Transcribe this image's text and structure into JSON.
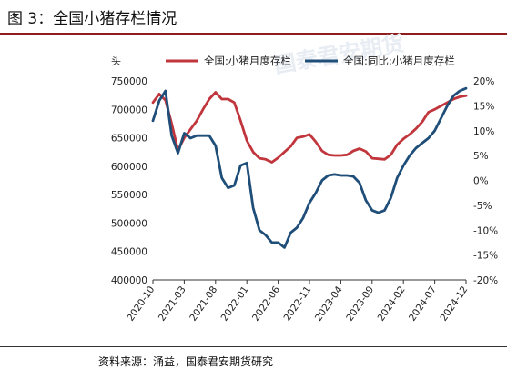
{
  "figure": {
    "title": "图 3：全国小猪存栏情况",
    "source": "资料来源：涌益，国泰君安期货研究",
    "watermark": "国泰君安期货"
  },
  "colors": {
    "series_national_stock": "#c0363c",
    "series_yoy": "#1f4e79",
    "rule_accent": "#8f1d1d",
    "axis": "#333333"
  },
  "chart_data": {
    "type": "line",
    "y_left_unit": "头",
    "ylim_left": [
      400000,
      750000
    ],
    "ylim_right": [
      -20,
      20
    ],
    "y_left_ticks": [
      "750000",
      "700000",
      "650000",
      "600000",
      "550000",
      "500000",
      "450000",
      "400000"
    ],
    "y_right_ticks": [
      "20%",
      "15%",
      "10%",
      "5%",
      "0%",
      "-5%",
      "-10%",
      "-15%",
      "-20%"
    ],
    "x_ticks": [
      "2020-10",
      "2021-03",
      "2021-08",
      "2022-01",
      "2022-06",
      "2022-11",
      "2023-04",
      "2023-09",
      "2024-02",
      "2024-07",
      "2024-12"
    ],
    "x_range": [
      "2020-10",
      "2024-12"
    ],
    "legend_position": "top",
    "series": [
      {
        "name": "全国:小猪月度存栏",
        "axis": "left",
        "points": [
          [
            "2020-10",
            712000
          ],
          [
            "2020-11",
            727000
          ],
          [
            "2020-12",
            716000
          ],
          [
            "2021-01",
            675000
          ],
          [
            "2021-02",
            628000
          ],
          [
            "2021-03",
            650000
          ],
          [
            "2021-04",
            665000
          ],
          [
            "2021-05",
            680000
          ],
          [
            "2021-06",
            700000
          ],
          [
            "2021-07",
            718000
          ],
          [
            "2021-08",
            730000
          ],
          [
            "2021-09",
            718000
          ],
          [
            "2021-10",
            718000
          ],
          [
            "2021-11",
            712000
          ],
          [
            "2021-12",
            680000
          ],
          [
            "2022-01",
            645000
          ],
          [
            "2022-02",
            625000
          ],
          [
            "2022-03",
            614000
          ],
          [
            "2022-04",
            612000
          ],
          [
            "2022-05",
            607000
          ],
          [
            "2022-06",
            615000
          ],
          [
            "2022-07",
            625000
          ],
          [
            "2022-08",
            635000
          ],
          [
            "2022-09",
            650000
          ],
          [
            "2022-10",
            652000
          ],
          [
            "2022-11",
            656000
          ],
          [
            "2022-12",
            643000
          ],
          [
            "2023-01",
            627000
          ],
          [
            "2023-02",
            620000
          ],
          [
            "2023-03",
            619000
          ],
          [
            "2023-04",
            619000
          ],
          [
            "2023-05",
            620000
          ],
          [
            "2023-06",
            627000
          ],
          [
            "2023-07",
            631000
          ],
          [
            "2023-08",
            626000
          ],
          [
            "2023-09",
            614000
          ],
          [
            "2023-10",
            613000
          ],
          [
            "2023-11",
            612000
          ],
          [
            "2023-12",
            620000
          ],
          [
            "2024-01",
            638000
          ],
          [
            "2024-02",
            648000
          ],
          [
            "2024-03",
            656000
          ],
          [
            "2024-04",
            666000
          ],
          [
            "2024-05",
            678000
          ],
          [
            "2024-06",
            695000
          ],
          [
            "2024-07",
            700000
          ],
          [
            "2024-08",
            706000
          ],
          [
            "2024-09",
            712000
          ],
          [
            "2024-10",
            718000
          ],
          [
            "2024-11",
            722000
          ],
          [
            "2024-12",
            724000
          ]
        ]
      },
      {
        "name": "全国:同比:小猪月度存栏",
        "axis": "right",
        "points": [
          [
            "2020-10",
            12.0
          ],
          [
            "2020-11",
            16.0
          ],
          [
            "2020-12",
            18.0
          ],
          [
            "2021-01",
            9.0
          ],
          [
            "2021-02",
            5.5
          ],
          [
            "2021-03",
            9.5
          ],
          [
            "2021-04",
            8.5
          ],
          [
            "2021-05",
            9.0
          ],
          [
            "2021-06",
            9.0
          ],
          [
            "2021-07",
            9.0
          ],
          [
            "2021-08",
            7.0
          ],
          [
            "2021-09",
            0.5
          ],
          [
            "2021-10",
            -1.5
          ],
          [
            "2021-11",
            -1.0
          ],
          [
            "2021-12",
            3.0
          ],
          [
            "2022-01",
            3.5
          ],
          [
            "2022-02",
            -5.5
          ],
          [
            "2022-03",
            -10.0
          ],
          [
            "2022-04",
            -11.0
          ],
          [
            "2022-05",
            -12.5
          ],
          [
            "2022-06",
            -12.5
          ],
          [
            "2022-07",
            -13.5
          ],
          [
            "2022-08",
            -10.5
          ],
          [
            "2022-09",
            -9.5
          ],
          [
            "2022-10",
            -7.5
          ],
          [
            "2022-11",
            -4.5
          ],
          [
            "2022-12",
            -2.5
          ],
          [
            "2023-01",
            0.0
          ],
          [
            "2023-02",
            1.0
          ],
          [
            "2023-03",
            1.2
          ],
          [
            "2023-04",
            1.0
          ],
          [
            "2023-05",
            1.0
          ],
          [
            "2023-06",
            0.8
          ],
          [
            "2023-07",
            -0.5
          ],
          [
            "2023-08",
            -4.0
          ],
          [
            "2023-09",
            -6.0
          ],
          [
            "2023-10",
            -6.5
          ],
          [
            "2023-11",
            -6.0
          ],
          [
            "2023-12",
            -3.5
          ],
          [
            "2024-01",
            0.5
          ],
          [
            "2024-02",
            3.0
          ],
          [
            "2024-03",
            5.0
          ],
          [
            "2024-04",
            6.5
          ],
          [
            "2024-05",
            7.5
          ],
          [
            "2024-06",
            8.5
          ],
          [
            "2024-07",
            10.0
          ],
          [
            "2024-08",
            12.5
          ],
          [
            "2024-09",
            15.0
          ],
          [
            "2024-10",
            17.0
          ],
          [
            "2024-11",
            18.0
          ],
          [
            "2024-12",
            18.5
          ]
        ]
      }
    ]
  }
}
